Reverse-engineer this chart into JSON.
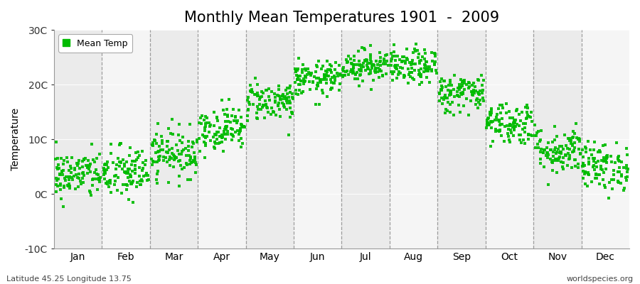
{
  "title": "Monthly Mean Temperatures 1901  -  2009",
  "ylabel": "Temperature",
  "subtitle_left": "Latitude 45.25 Longitude 13.75",
  "subtitle_right": "worldspecies.org",
  "legend_label": "Mean Temp",
  "dot_color": "#00BB00",
  "band_color_odd": "#EBEBEB",
  "band_color_even": "#F5F5F5",
  "fig_bg_color": "#FFFFFF",
  "ylim": [
    -10,
    30
  ],
  "ytick_labels": [
    "-10C",
    "0C",
    "10C",
    "20C",
    "30C"
  ],
  "ytick_values": [
    -10,
    0,
    10,
    20,
    30
  ],
  "months": [
    "Jan",
    "Feb",
    "Mar",
    "Apr",
    "May",
    "Jun",
    "Jul",
    "Aug",
    "Sep",
    "Oct",
    "Nov",
    "Dec"
  ],
  "month_means": [
    3.5,
    3.8,
    7.5,
    12.0,
    17.0,
    21.0,
    23.5,
    23.2,
    18.5,
    13.0,
    8.0,
    5.0
  ],
  "month_stds": [
    2.2,
    2.5,
    2.2,
    2.0,
    1.8,
    1.6,
    1.5,
    1.6,
    1.8,
    2.0,
    2.2,
    2.2
  ],
  "n_years": 109,
  "seed": 42,
  "dot_size": 6,
  "dot_alpha": 0.9,
  "title_fontsize": 15,
  "axis_fontsize": 10,
  "tick_fontsize": 10
}
